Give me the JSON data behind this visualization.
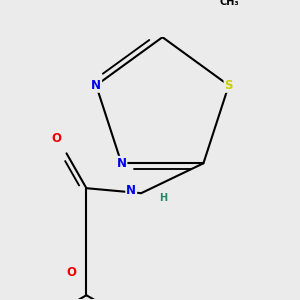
{
  "background_color": "#ebebeb",
  "atom_colors": {
    "C": "#000000",
    "N": "#0000ee",
    "O": "#ee0000",
    "S": "#cccc00",
    "H": "#228866"
  },
  "bond_color": "#000000",
  "bond_lw": 1.5,
  "font_size_label": 8.5,
  "font_size_small": 7.0
}
